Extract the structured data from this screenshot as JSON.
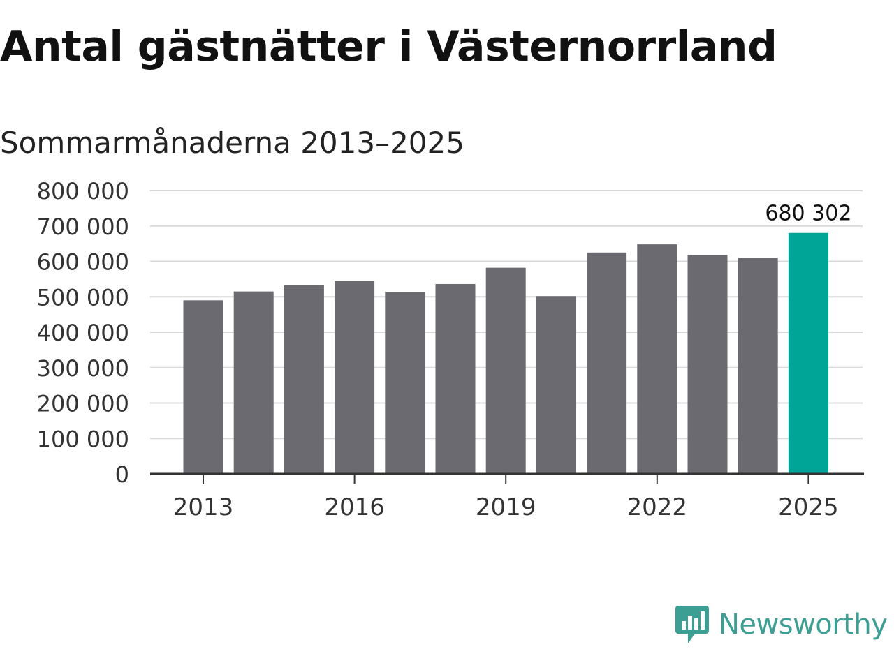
{
  "chart_data": {
    "type": "bar",
    "title": "Antal gästnätter i Västernorrland",
    "subtitle": "Sommarmånaderna 2013–2025",
    "categories": [
      "2013",
      "2014",
      "2015",
      "2016",
      "2017",
      "2018",
      "2019",
      "2020",
      "2021",
      "2022",
      "2023",
      "2024",
      "2025"
    ],
    "values": [
      490000,
      515000,
      532000,
      545000,
      514000,
      536000,
      582000,
      502000,
      625000,
      648000,
      618000,
      610000,
      680302
    ],
    "x_tick_labels": [
      "2013",
      "2016",
      "2019",
      "2022",
      "2025"
    ],
    "y_ticks": [
      0,
      100000,
      200000,
      300000,
      400000,
      500000,
      600000,
      700000,
      800000
    ],
    "y_tick_labels": [
      "0",
      "100 000",
      "200 000",
      "300 000",
      "400 000",
      "500 000",
      "600 000",
      "700 000",
      "800 000"
    ],
    "ylim": [
      0,
      800000
    ],
    "xlabel": "",
    "ylabel": "",
    "grid": true,
    "data_labels": [
      {
        "category": "2025",
        "text": "680 302"
      }
    ],
    "colors": {
      "bar": "#6b6a70",
      "highlight": "#00a598",
      "grid": "#d9d9d9",
      "axis": "#333333"
    }
  },
  "brand": {
    "name": "Newsworthy",
    "icon": "newsworthy-logo-icon",
    "color": "#3d9e94"
  }
}
